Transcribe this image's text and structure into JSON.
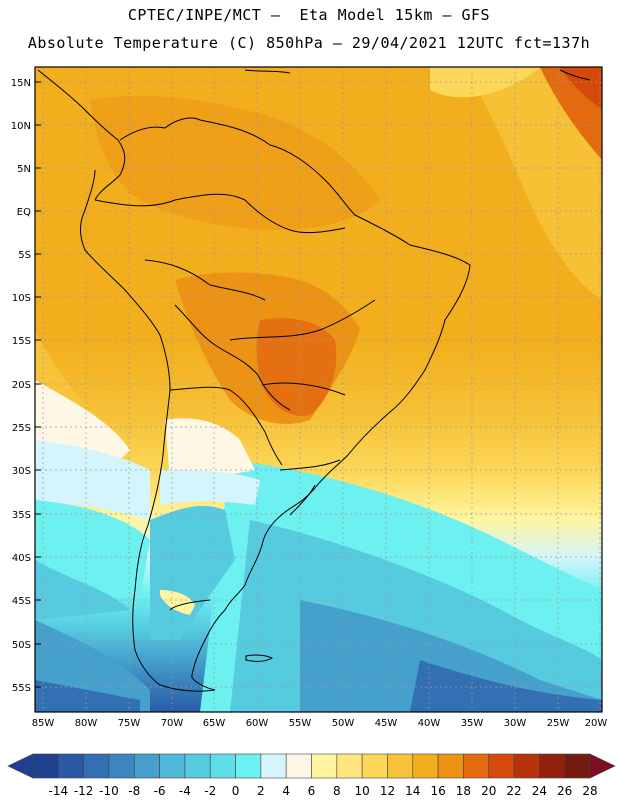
{
  "title": {
    "line1": "CPTEC/INPE/MCT –  Eta Model 15km – GFS",
    "line2": "Absolute Temperature (C) 850hPa – 29/04/2021 12UTC fct=137h"
  },
  "map": {
    "lat_labels": [
      "15N",
      "10N",
      "5N",
      "EQ",
      "5S",
      "10S",
      "15S",
      "20S",
      "25S",
      "30S",
      "35S",
      "40S",
      "45S",
      "50S",
      "55S"
    ],
    "lon_labels": [
      "85W",
      "80W",
      "75W",
      "70W",
      "65W",
      "60W",
      "55W",
      "50W",
      "45W",
      "40W",
      "35W",
      "30W",
      "25W",
      "20W"
    ]
  },
  "colorbar": {
    "labels": [
      "-14",
      "-12",
      "-10",
      "-8",
      "-6",
      "-4",
      "-2",
      "0",
      "2",
      "4",
      "6",
      "8",
      "10",
      "12",
      "14",
      "16",
      "18",
      "20",
      "22",
      "24",
      "26",
      "28"
    ],
    "colors": [
      "#1f3f8f",
      "#2a5aa6",
      "#3270b3",
      "#3b86c0",
      "#45a0cc",
      "#4fb8d8",
      "#56cbe0",
      "#5fdde8",
      "#6cf0f0",
      "#d4f5fb",
      "#fff7e6",
      "#fff59e",
      "#ffe680",
      "#fcd85a",
      "#f7c33a",
      "#f2ae1c",
      "#ec9315",
      "#e46a10",
      "#d54a0b",
      "#b8330a",
      "#93200c",
      "#741a0e"
    ]
  }
}
